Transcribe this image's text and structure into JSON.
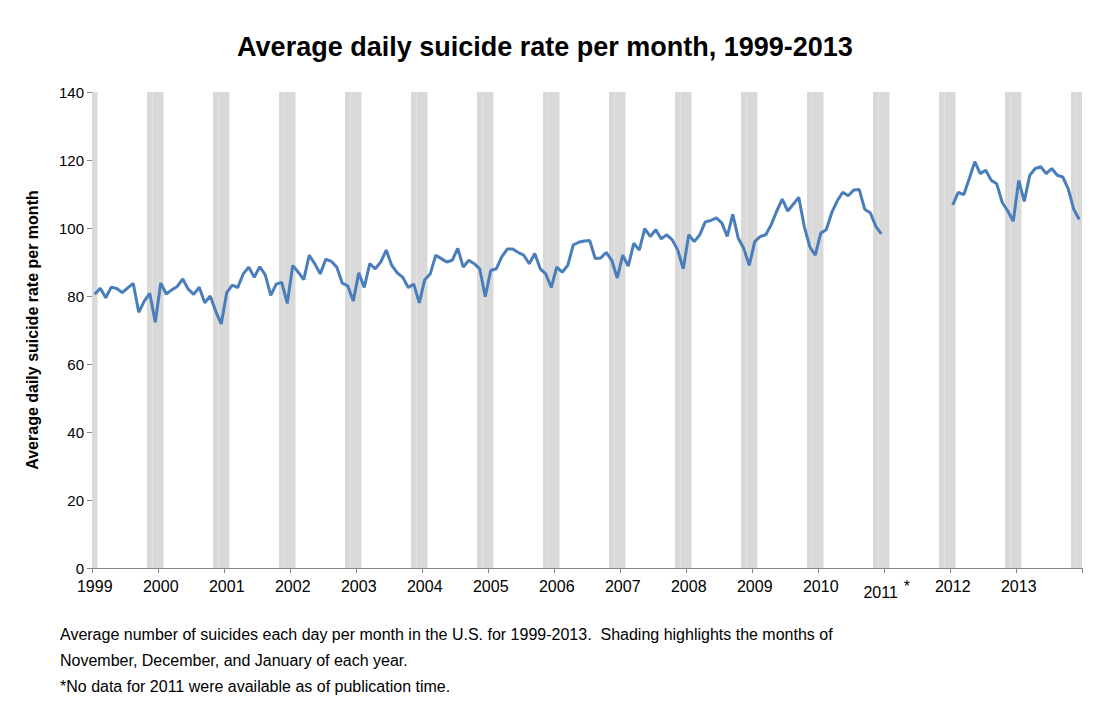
{
  "chart_data": {
    "type": "line",
    "title": "Average daily suicide rate per month, 1999-2013",
    "y_label": "Average daily suicide rate per month",
    "notes": [
      "Average number of suicides each day per month in the U.S. for 1999-2013.  Shading highlights the months of",
      "November, December, and January of each year.",
      "*No data for 2011 were available as of publication time."
    ],
    "highlighted_months": [
      11,
      12,
      1
    ],
    "categories": [
      "1999",
      null,
      null,
      null,
      null,
      null,
      null,
      null,
      null,
      null,
      null,
      null,
      "2000",
      null,
      null,
      null,
      null,
      null,
      null,
      null,
      null,
      null,
      null,
      null,
      "2001",
      null,
      null,
      null,
      null,
      null,
      null,
      null,
      null,
      null,
      null,
      null,
      "2002",
      null,
      null,
      null,
      null,
      null,
      null,
      null,
      null,
      null,
      null,
      null,
      "2003",
      null,
      null,
      null,
      null,
      null,
      null,
      null,
      null,
      null,
      null,
      null,
      "2004",
      null,
      null,
      null,
      null,
      null,
      null,
      null,
      null,
      null,
      null,
      null,
      "2005",
      null,
      null,
      null,
      null,
      null,
      null,
      null,
      null,
      null,
      null,
      null,
      "2006",
      null,
      null,
      null,
      null,
      null,
      null,
      null,
      null,
      null,
      null,
      null,
      "2007",
      null,
      null,
      null,
      null,
      null,
      null,
      null,
      null,
      null,
      null,
      null,
      "2008",
      null,
      null,
      null,
      null,
      null,
      null,
      null,
      null,
      null,
      null,
      null,
      "2009",
      null,
      null,
      null,
      null,
      null,
      null,
      null,
      null,
      null,
      null,
      null,
      "2010",
      null,
      null,
      null,
      null,
      null,
      null,
      null,
      null,
      null,
      null,
      null,
      "2011*",
      null,
      null,
      null,
      null,
      null,
      null,
      null,
      null,
      null,
      null,
      null,
      "2012",
      null,
      null,
      null,
      null,
      null,
      null,
      null,
      null,
      null,
      null,
      null,
      "2013",
      null,
      null,
      null,
      null,
      null,
      null,
      null,
      null,
      null,
      null,
      null
    ],
    "values": [
      80.5,
      82.3,
      79.5,
      82.6,
      82.2,
      81.0,
      82.4,
      83.7,
      75.2,
      78.5,
      80.8,
      72.3,
      83.8,
      80.6,
      81.8,
      82.8,
      85.0,
      82.0,
      80.5,
      82.6,
      78.0,
      80.0,
      75.5,
      71.8,
      81.0,
      83.2,
      82.5,
      86.5,
      88.5,
      85.5,
      88.6,
      86.2,
      80.2,
      83.5,
      84.0,
      77.8,
      89.0,
      87.0,
      84.8,
      92.0,
      89.5,
      86.5,
      90.8,
      90.2,
      88.5,
      83.8,
      83.0,
      78.5,
      86.8,
      82.5,
      89.5,
      88.0,
      90.0,
      93.5,
      89.0,
      86.8,
      85.5,
      82.5,
      83.5,
      78.0,
      84.8,
      86.5,
      92.0,
      91.0,
      90.0,
      90.5,
      94.0,
      88.5,
      90.5,
      89.5,
      88.0,
      79.8,
      87.5,
      88.0,
      91.5,
      93.8,
      93.8,
      92.8,
      92.0,
      89.5,
      92.5,
      88.0,
      86.5,
      82.5,
      88.5,
      87.0,
      89.0,
      95.0,
      95.8,
      96.2,
      96.3,
      91.0,
      91.2,
      92.8,
      90.5,
      85.3,
      92.0,
      88.8,
      95.5,
      93.5,
      99.8,
      97.5,
      99.5,
      96.8,
      98.0,
      96.5,
      93.5,
      88.0,
      98.0,
      96.0,
      98.0,
      101.8,
      102.2,
      103.0,
      101.5,
      97.5,
      104.0,
      97.0,
      94.0,
      89.0,
      96.0,
      97.5,
      98.0,
      101.0,
      105.0,
      108.5,
      105.0,
      107.0,
      109.0,
      100.5,
      94.5,
      92.0,
      98.5,
      99.5,
      104.5,
      108.0,
      110.5,
      109.5,
      111.2,
      111.3,
      105.5,
      104.5,
      100.5,
      98.3,
      null,
      null,
      null,
      null,
      null,
      null,
      null,
      null,
      null,
      null,
      null,
      null,
      106.8,
      110.5,
      109.8,
      114.5,
      119.5,
      116.0,
      117.0,
      114.0,
      113.0,
      107.5,
      105.0,
      102.0,
      114.0,
      107.8,
      115.5,
      117.5,
      118.0,
      116.0,
      117.5,
      115.5,
      115.0,
      111.5,
      105.5,
      102.5
    ],
    "color": "#4a7ebb",
    "marker": "none",
    "ylim": [
      0,
      140
    ],
    "yticks": [
      0,
      20,
      40,
      60,
      80,
      100,
      120,
      140
    ],
    "grid": false
  }
}
